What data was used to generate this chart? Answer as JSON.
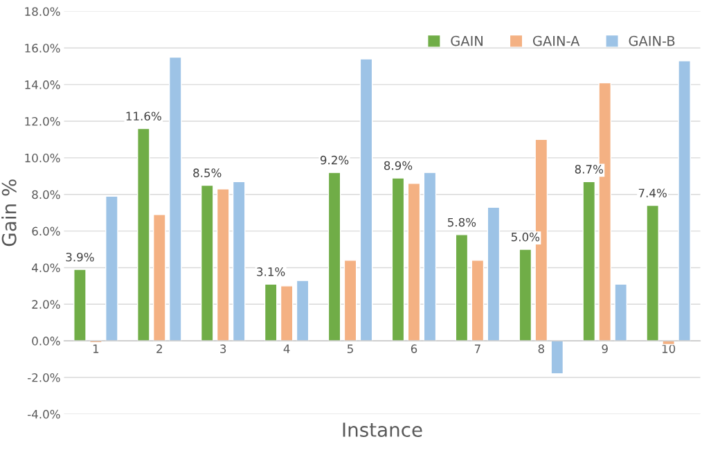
{
  "chart_data": {
    "type": "bar",
    "xlabel": "Instance",
    "ylabel": "Gain %",
    "categories": [
      "1",
      "2",
      "3",
      "4",
      "5",
      "6",
      "7",
      "8",
      "9",
      "10"
    ],
    "series": [
      {
        "name": "GAIN",
        "color": "#70ad47",
        "values": [
          3.9,
          11.6,
          8.5,
          3.1,
          9.2,
          8.9,
          5.8,
          5.0,
          8.7,
          7.4
        ],
        "value_labels": [
          "3.9%",
          "11.6%",
          "8.5%",
          "3.1%",
          "9.2%",
          "8.9%",
          "5.8%",
          "5.0%",
          "8.7%",
          "7.4%"
        ]
      },
      {
        "name": "GAIN-A",
        "color": "#f4b183",
        "values": [
          -0.1,
          6.9,
          8.3,
          3.0,
          4.4,
          8.6,
          4.4,
          11.0,
          14.1,
          -0.2
        ]
      },
      {
        "name": "GAIN-B",
        "color": "#9dc3e6",
        "values": [
          7.9,
          15.5,
          8.7,
          3.3,
          15.4,
          9.2,
          7.3,
          -1.8,
          3.1,
          15.3
        ]
      }
    ],
    "ylim": [
      -4,
      18
    ],
    "yticks": [
      {
        "value": -4,
        "label": "-4.0%"
      },
      {
        "value": -2,
        "label": "-2.0%"
      },
      {
        "value": 0,
        "label": "0.0%"
      },
      {
        "value": 2,
        "label": "2.0%"
      },
      {
        "value": 4,
        "label": "4.0%"
      },
      {
        "value": 6,
        "label": "6.0%"
      },
      {
        "value": 8,
        "label": "8.0%"
      },
      {
        "value": 10,
        "label": "10.0%"
      },
      {
        "value": 12,
        "label": "12.0%"
      },
      {
        "value": 14,
        "label": "14.0%"
      },
      {
        "value": 16,
        "label": "16.0%"
      },
      {
        "value": 18,
        "label": "18.0%"
      }
    ],
    "grid": "y",
    "legend": "top right"
  }
}
